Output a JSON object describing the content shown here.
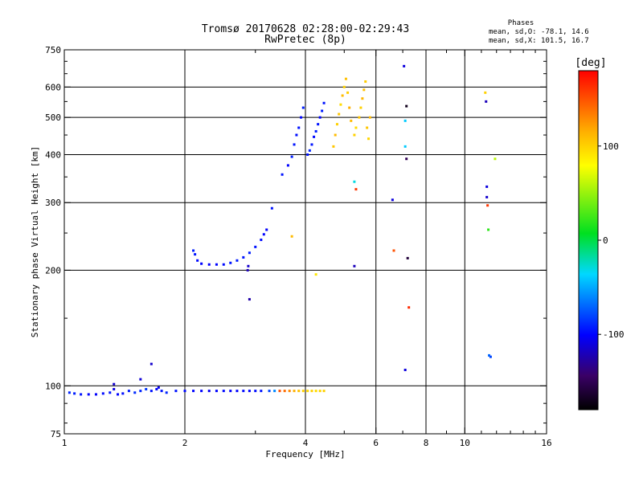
{
  "header": {
    "title_line1": "Tromsø 20170628 02:28:00-02:29:43",
    "title_line2": "RwPretec (8p)"
  },
  "stats": {
    "title": "Phases",
    "line1": "mean, sd,O: -78.1, 14.6",
    "line2": "mean, sd,X: 101.5, 16.7"
  },
  "colorbar": {
    "label": "[deg]",
    "ticks": [
      {
        "label": "100",
        "value": 100
      },
      {
        "label": "0",
        "value": 0
      },
      {
        "label": "-100",
        "value": -100
      }
    ],
    "range": [
      -180,
      180
    ]
  },
  "chart_data": {
    "type": "scatter",
    "title": "Tromsø 20170628 02:28:00-02:29:43",
    "subtitle": "RwPretec (8p)",
    "xlabel": "Frequency [MHz]",
    "ylabel": "Stationary phase Virtual Height [km]",
    "xscale": "log",
    "yscale": "log",
    "xlim": [
      1,
      16
    ],
    "ylim": [
      75,
      750
    ],
    "xticks": [
      {
        "value": 1,
        "label": "1"
      },
      {
        "value": 2,
        "label": "2"
      },
      {
        "value": 4,
        "label": "4"
      },
      {
        "value": 6,
        "label": "6"
      },
      {
        "value": 8,
        "label": "8"
      },
      {
        "value": 10,
        "label": "10"
      },
      {
        "value": 16,
        "label": "16"
      }
    ],
    "yticks": [
      {
        "value": 75,
        "label": "75"
      },
      {
        "value": 100,
        "label": "100"
      },
      {
        "value": 200,
        "label": "200"
      },
      {
        "value": 300,
        "label": "300"
      },
      {
        "value": 400,
        "label": "400"
      },
      {
        "value": 500,
        "label": "500"
      },
      {
        "value": 600,
        "label": "600"
      },
      {
        "value": 750,
        "label": "750"
      }
    ],
    "xgrid": [
      2,
      4,
      6,
      8,
      10
    ],
    "ygrid": [
      100,
      200,
      300,
      400,
      500,
      600
    ],
    "color_scale": "phase in degrees, -180 (black) to 180 (red)",
    "series": [
      {
        "name": "E layer trace",
        "points": [
          [
            1.03,
            96,
            -90
          ],
          [
            1.06,
            95.5,
            -92
          ],
          [
            1.1,
            95,
            -95
          ],
          [
            1.15,
            95,
            -100
          ],
          [
            1.2,
            95,
            -102
          ],
          [
            1.25,
            95.5,
            -98
          ],
          [
            1.3,
            96,
            -95
          ],
          [
            1.33,
            98,
            -110
          ],
          [
            1.36,
            95,
            -100
          ],
          [
            1.4,
            95.5,
            -97
          ],
          [
            1.45,
            97,
            -92
          ],
          [
            1.5,
            96,
            -88
          ],
          [
            1.55,
            97,
            -90
          ],
          [
            1.6,
            98,
            -85
          ],
          [
            1.65,
            97,
            -95
          ],
          [
            1.7,
            98,
            -100
          ],
          [
            1.75,
            97,
            -95
          ],
          [
            1.8,
            96,
            -90
          ],
          [
            1.9,
            97,
            -95
          ],
          [
            2.0,
            97,
            -98
          ],
          [
            2.1,
            97,
            -100
          ],
          [
            2.2,
            97,
            -100
          ],
          [
            2.3,
            97,
            -105
          ],
          [
            2.4,
            97,
            -100
          ],
          [
            2.5,
            97,
            -98
          ],
          [
            2.6,
            97,
            -102
          ],
          [
            2.7,
            97,
            -100
          ],
          [
            2.8,
            97,
            -98
          ],
          [
            2.9,
            97,
            -100
          ],
          [
            3.0,
            97,
            -97
          ],
          [
            3.1,
            97,
            -95
          ],
          [
            3.25,
            97,
            -80
          ],
          [
            3.35,
            97,
            -60
          ],
          [
            3.45,
            97,
            150
          ],
          [
            3.55,
            97,
            140
          ],
          [
            3.65,
            97,
            130
          ],
          [
            3.75,
            97,
            115
          ],
          [
            3.85,
            97,
            108
          ],
          [
            3.95,
            97,
            100
          ],
          [
            4.05,
            97,
            98
          ],
          [
            4.15,
            97,
            100
          ],
          [
            4.25,
            97,
            95
          ],
          [
            4.35,
            97,
            98
          ],
          [
            4.45,
            97,
            100
          ]
        ]
      },
      {
        "name": "E scatter",
        "points": [
          [
            1.33,
            101,
            -115
          ],
          [
            1.55,
            104,
            -112
          ],
          [
            1.65,
            114,
            -115
          ],
          [
            1.72,
            99,
            -105
          ]
        ]
      },
      {
        "name": "F1 trace",
        "points": [
          [
            2.1,
            225,
            -92
          ],
          [
            2.12,
            220,
            -95
          ],
          [
            2.15,
            212,
            -98
          ],
          [
            2.2,
            208,
            -100
          ],
          [
            2.3,
            207,
            -102
          ],
          [
            2.4,
            207,
            -100
          ],
          [
            2.5,
            207,
            -98
          ],
          [
            2.6,
            209,
            -95
          ],
          [
            2.7,
            212,
            -93
          ],
          [
            2.8,
            216,
            -95
          ],
          [
            2.9,
            222,
            -92
          ],
          [
            3.0,
            230,
            -95
          ],
          [
            3.1,
            240,
            -98
          ],
          [
            3.15,
            248,
            -100
          ],
          [
            3.2,
            255,
            -102
          ],
          [
            2.87,
            200,
            -120
          ],
          [
            2.88,
            205,
            -115
          ],
          [
            2.9,
            168,
            -125
          ]
        ]
      },
      {
        "name": "F2 O-mode trace",
        "points": [
          [
            3.3,
            290,
            -95
          ],
          [
            3.5,
            355,
            -95
          ],
          [
            3.62,
            375,
            -100
          ],
          [
            3.7,
            395,
            -92
          ],
          [
            3.75,
            425,
            -95
          ],
          [
            3.8,
            450,
            -97
          ],
          [
            3.85,
            470,
            -95
          ],
          [
            3.9,
            500,
            -100
          ],
          [
            3.95,
            530,
            -92
          ],
          [
            4.05,
            400,
            -95
          ],
          [
            4.1,
            410,
            -90
          ],
          [
            4.15,
            425,
            -95
          ],
          [
            4.2,
            445,
            -98
          ],
          [
            4.25,
            460,
            -92
          ],
          [
            4.3,
            480,
            -95
          ],
          [
            4.35,
            500,
            -100
          ],
          [
            4.4,
            520,
            -92
          ],
          [
            4.45,
            545,
            -95
          ]
        ]
      },
      {
        "name": "F2 X-mode trace",
        "points": [
          [
            4.7,
            420,
            105
          ],
          [
            4.75,
            450,
            110
          ],
          [
            4.8,
            480,
            100
          ],
          [
            4.85,
            510,
            105
          ],
          [
            4.9,
            540,
            95
          ],
          [
            4.95,
            570,
            110
          ],
          [
            5.0,
            600,
            100
          ],
          [
            5.05,
            630,
            108
          ],
          [
            5.1,
            580,
            102
          ],
          [
            5.15,
            530,
            115
          ],
          [
            5.2,
            490,
            110
          ],
          [
            5.3,
            450,
            100
          ],
          [
            5.35,
            470,
            95
          ],
          [
            5.45,
            500,
            105
          ],
          [
            5.5,
            530,
            100
          ],
          [
            5.55,
            560,
            112
          ],
          [
            5.6,
            590,
            108
          ],
          [
            5.65,
            620,
            102
          ],
          [
            5.7,
            470,
            105
          ],
          [
            5.75,
            440,
            98
          ],
          [
            5.8,
            500,
            110
          ]
        ]
      },
      {
        "name": "Scattered echoes",
        "points": [
          [
            3.7,
            245,
            110
          ],
          [
            4.25,
            195,
            90
          ],
          [
            5.3,
            340,
            -30
          ],
          [
            5.35,
            325,
            160
          ],
          [
            5.3,
            205,
            -120
          ],
          [
            6.6,
            305,
            -110
          ],
          [
            6.65,
            225,
            150
          ],
          [
            7.05,
            680,
            -110
          ],
          [
            7.1,
            490,
            -40
          ],
          [
            7.1,
            420,
            -40
          ],
          [
            7.15,
            535,
            -170
          ],
          [
            7.15,
            390,
            -150
          ],
          [
            7.2,
            215,
            -160
          ],
          [
            7.25,
            160,
            165
          ],
          [
            7.1,
            110,
            -110
          ],
          [
            11.25,
            580,
            100
          ],
          [
            11.3,
            550,
            -120
          ],
          [
            11.35,
            330,
            -110
          ],
          [
            11.35,
            310,
            -115
          ],
          [
            11.4,
            295,
            160
          ],
          [
            11.45,
            255,
            20
          ],
          [
            11.5,
            120,
            -70
          ],
          [
            11.6,
            119,
            -80
          ],
          [
            11.9,
            390,
            60
          ]
        ]
      }
    ]
  }
}
